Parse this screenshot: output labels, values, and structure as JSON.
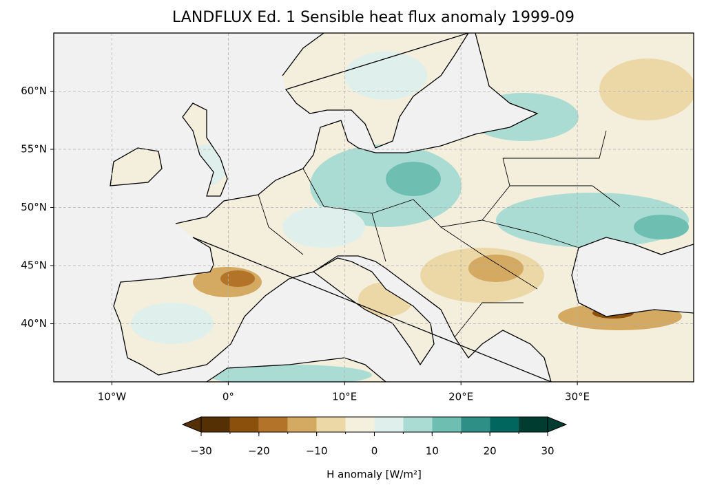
{
  "chart_data": {
    "type": "map",
    "title": "LANDFLUX Ed. 1 Sensible heat flux anomaly 1999-09",
    "xlim": [
      -15,
      40
    ],
    "ylim": [
      35,
      65
    ],
    "xticks": [
      {
        "value": -10,
        "label": "10°W"
      },
      {
        "value": 0,
        "label": "0°"
      },
      {
        "value": 10,
        "label": "10°E"
      },
      {
        "value": 20,
        "label": "20°E"
      },
      {
        "value": 30,
        "label": "30°E"
      }
    ],
    "yticks": [
      {
        "value": 40,
        "label": "40°N"
      },
      {
        "value": 45,
        "label": "45°N"
      },
      {
        "value": 50,
        "label": "50°N"
      },
      {
        "value": 55,
        "label": "55°N"
      },
      {
        "value": 60,
        "label": "60°N"
      }
    ],
    "grid": true,
    "colorbar": {
      "label": "H anomaly [W/m²]",
      "extend": "both",
      "levels": [
        -30,
        -25,
        -20,
        -15,
        -10,
        -5,
        0,
        5,
        10,
        15,
        20,
        25,
        30
      ],
      "colors": [
        "#553005",
        "#8a500c",
        "#b3742a",
        "#d4aa62",
        "#ecd7a6",
        "#f5efdd",
        "#dff0ec",
        "#abdcd3",
        "#6ebfb1",
        "#2d8f86",
        "#01665e",
        "#003c30"
      ],
      "ticks": [
        {
          "value": -30,
          "label": "−30"
        },
        {
          "value": -20,
          "label": "−20"
        },
        {
          "value": -10,
          "label": "−10"
        },
        0,
        10,
        20,
        30
      ]
    }
  }
}
